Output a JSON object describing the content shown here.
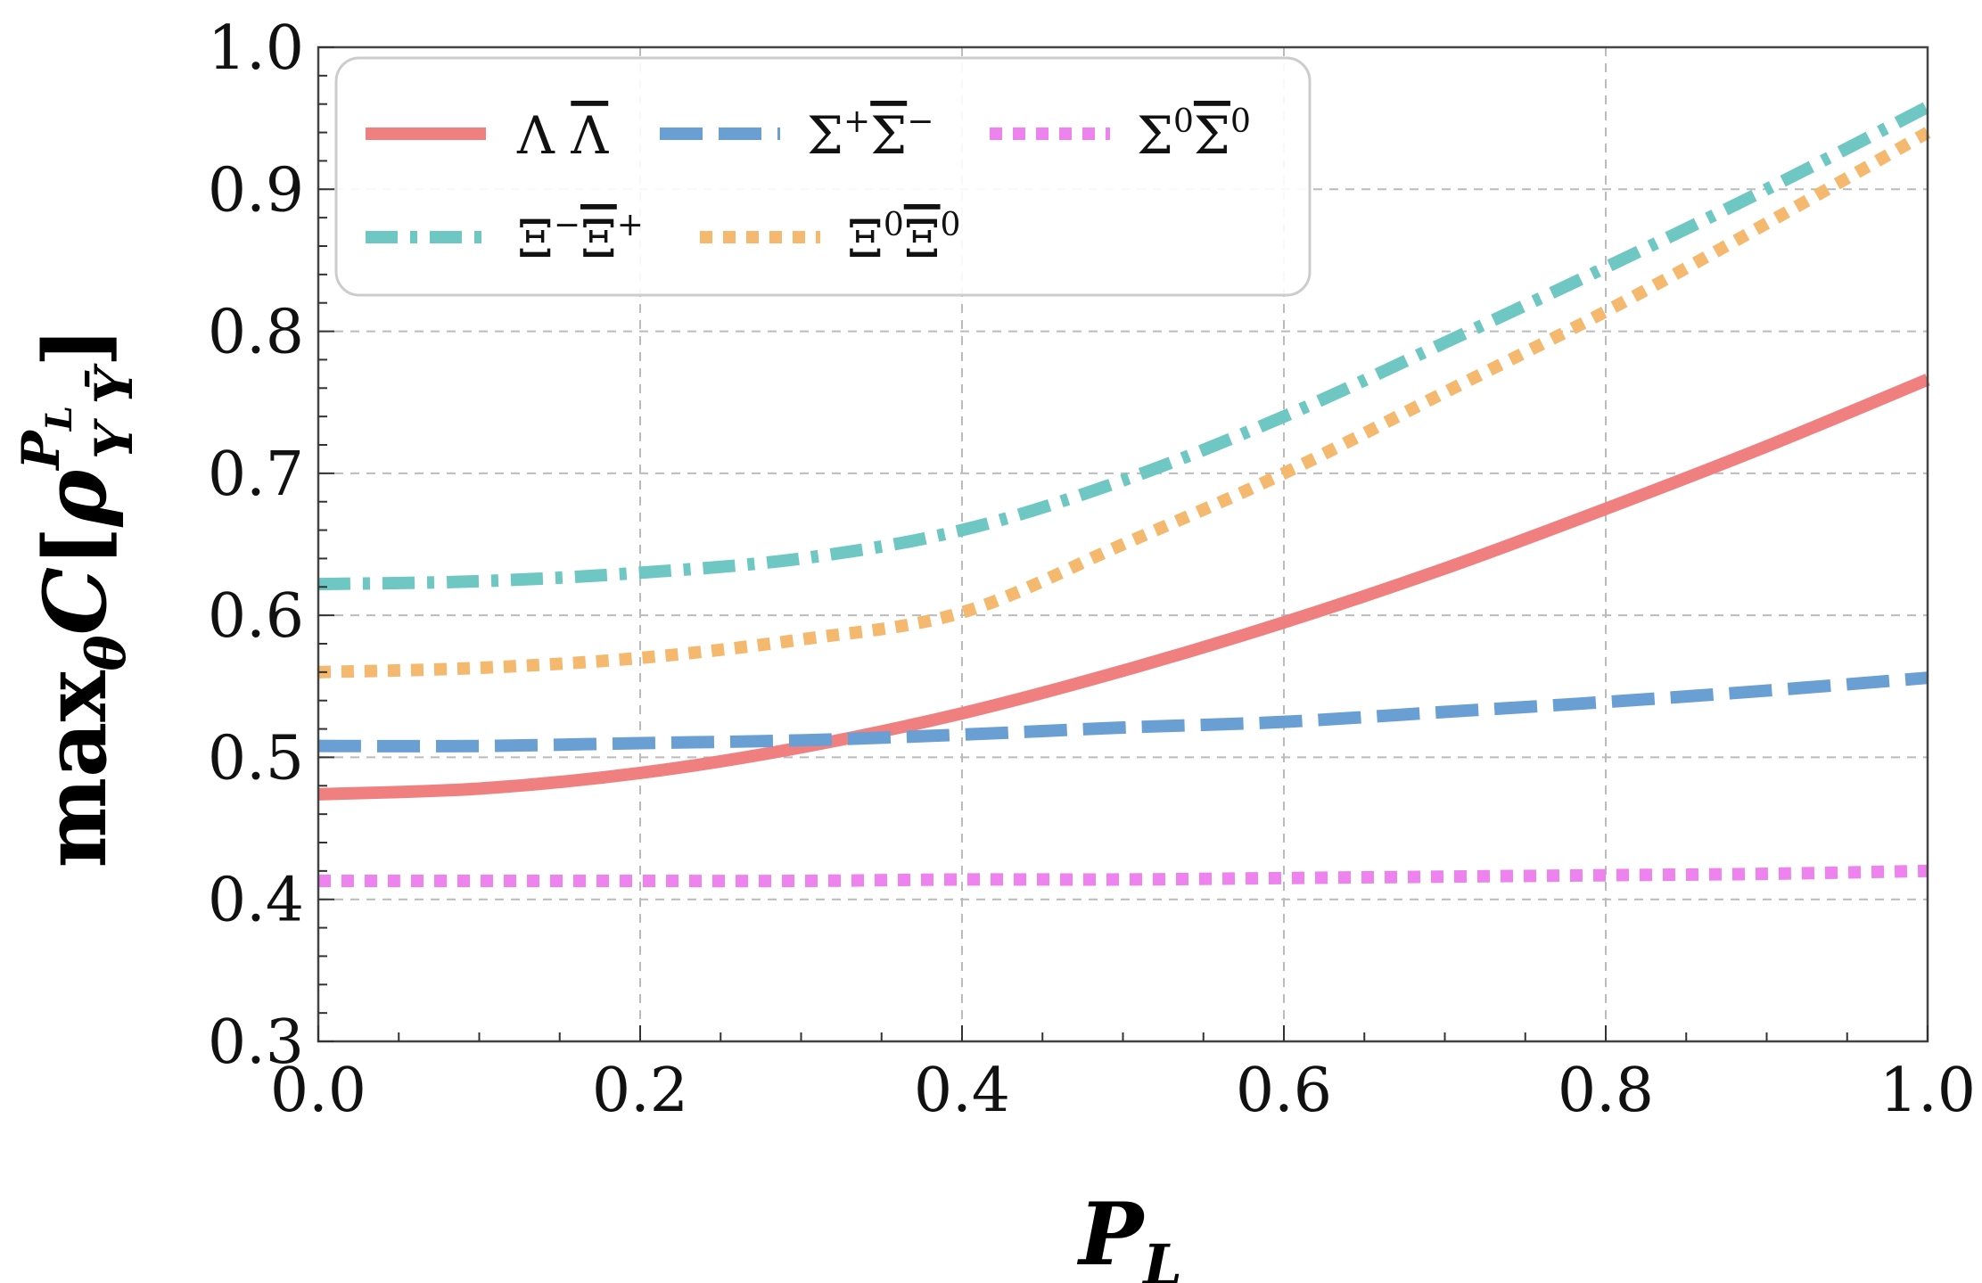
{
  "chart_data": {
    "type": "line",
    "title": "",
    "xlabel": "P_L",
    "ylabel": "max_θ C[ρ^{P_L}_{Y Ȳ}]",
    "xlim": [
      0.0,
      1.0
    ],
    "ylim": [
      0.3,
      1.0
    ],
    "grid": true,
    "legend_position": "top-left",
    "x_ticks": [
      "0.0",
      "0.2",
      "0.4",
      "0.6",
      "0.8",
      "1.0"
    ],
    "y_ticks": [
      "0.3",
      "0.4",
      "0.5",
      "0.6",
      "0.7",
      "0.8",
      "0.9",
      "1.0"
    ],
    "x": [
      0.0,
      0.1,
      0.2,
      0.3,
      0.4,
      0.5,
      0.6,
      0.7,
      0.8,
      0.9,
      1.0
    ],
    "series": [
      {
        "name": "Λ Λ̄",
        "label_main": "Λ",
        "label_bar": "Λ",
        "label_bar_sup": "",
        "label_sup": "",
        "color": "#f08080",
        "style": "solid",
        "values": [
          0.474,
          0.478,
          0.489,
          0.507,
          0.531,
          0.561,
          0.595,
          0.633,
          0.675,
          0.719,
          0.766
        ]
      },
      {
        "name": "Σ⁺Σ̄⁻",
        "label_main": "Σ",
        "label_sup": "+",
        "label_bar": "Σ",
        "label_bar_sup": "−",
        "color": "#6a9fd4",
        "style": "dashed",
        "values": [
          0.508,
          0.508,
          0.51,
          0.512,
          0.516,
          0.521,
          0.525,
          0.532,
          0.539,
          0.547,
          0.556
        ]
      },
      {
        "name": "Σ⁰Σ̄⁰",
        "label_main": "Σ",
        "label_sup": "0",
        "label_bar": "Σ",
        "label_bar_sup": "0",
        "color": "#ee82ee",
        "style": "dotted",
        "values": [
          0.413,
          0.413,
          0.413,
          0.413,
          0.414,
          0.414,
          0.415,
          0.416,
          0.417,
          0.418,
          0.42
        ]
      },
      {
        "name": "Ξ⁻Ξ̄⁺",
        "label_main": "Ξ",
        "label_sup": "−",
        "label_bar": "Ξ",
        "label_bar_sup": "+",
        "color": "#6fc7c3",
        "style": "dashdot",
        "values": [
          0.622,
          0.624,
          0.63,
          0.64,
          0.66,
          0.695,
          0.74,
          0.792,
          0.845,
          0.9,
          0.958
        ]
      },
      {
        "name": "Ξ⁰Ξ̄⁰",
        "label_main": "Ξ",
        "label_sup": "0",
        "label_bar": "Ξ",
        "label_bar_sup": "0",
        "color": "#f4b86e",
        "style": "dotted",
        "values": [
          0.56,
          0.563,
          0.57,
          0.583,
          0.602,
          0.65,
          0.7,
          0.757,
          0.814,
          0.876,
          0.94
        ]
      }
    ]
  }
}
